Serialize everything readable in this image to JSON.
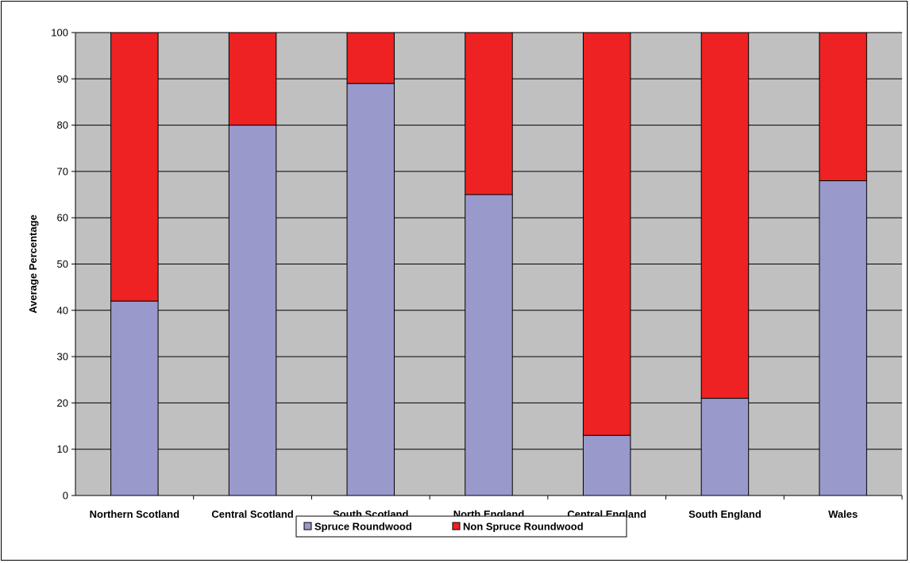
{
  "chart_data": {
    "type": "bar",
    "stacked": true,
    "categories": [
      "Northern Scotland",
      "Central Scotland",
      "South Scotland",
      "North England",
      "Central England",
      "South England",
      "Wales"
    ],
    "series": [
      {
        "name": "Spruce Roundwood",
        "color": "#9999CC",
        "values": [
          42,
          80,
          89,
          65,
          13,
          21,
          68
        ]
      },
      {
        "name": "Non Spruce Roundwood",
        "color": "#EE2222",
        "values": [
          58,
          20,
          11,
          35,
          87,
          79,
          32
        ]
      }
    ],
    "title": "",
    "xlabel": "",
    "ylabel": "Average Percentage",
    "ylim": [
      0,
      100
    ],
    "yticks": [
      0,
      10,
      20,
      30,
      40,
      50,
      60,
      70,
      80,
      90,
      100
    ],
    "grid": true,
    "plot_background": "#C0C0C0",
    "legend_position": "bottom"
  }
}
